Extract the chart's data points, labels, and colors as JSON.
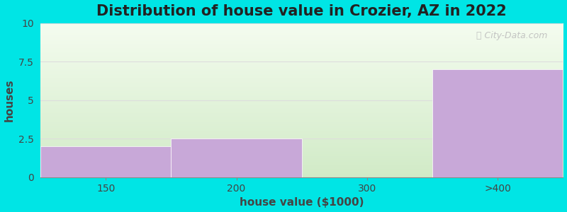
{
  "title": "Distribution of house value in Crozier, AZ in 2022",
  "xlabel": "house value ($1000)",
  "ylabel": "houses",
  "categories": [
    "150",
    "200",
    "300",
    ">400"
  ],
  "values": [
    2.0,
    2.5,
    0.0,
    7.0
  ],
  "bar_color": "#c8a8d8",
  "bar_edgecolor": "white",
  "ylim": [
    0,
    10
  ],
  "yticks": [
    0,
    2.5,
    5,
    7.5,
    10
  ],
  "background_outer": "#00e5e5",
  "bg_top_right": "#f5f8f0",
  "bg_bottom_left": "#d8ecd0",
  "grid_color": "#dddddd",
  "title_fontsize": 15,
  "axis_label_fontsize": 11,
  "tick_fontsize": 10,
  "watermark_text": "City-Data.com",
  "bin_edges": [
    0,
    1,
    2,
    3,
    4
  ],
  "n_bins": 4
}
